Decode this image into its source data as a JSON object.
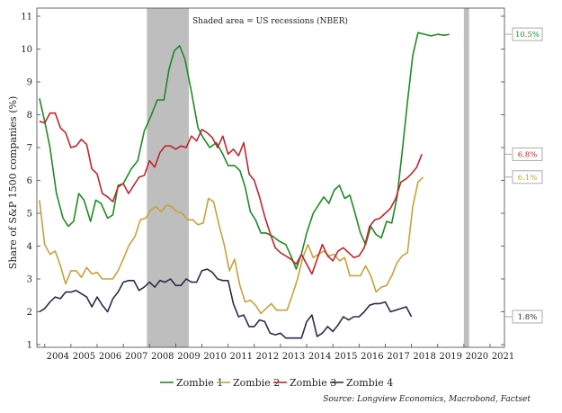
{
  "chart_data": {
    "type": "line",
    "note": "Shaded area = US recessions (NBER)",
    "ylabel": "Share of S&P 1500 companies (%)",
    "source": "Source:  Longview Economics, Macrobond, Factset",
    "ylim": [
      1,
      11
    ],
    "xlim": [
      2003.7,
      2021.55
    ],
    "yticks": [
      "1",
      "2",
      "3",
      "4",
      "5",
      "6",
      "7",
      "8",
      "9",
      "10",
      "11"
    ],
    "xticks": [
      "2004",
      "2005",
      "2006",
      "2007",
      "2008",
      "2009",
      "2010",
      "2011",
      "2012",
      "2013",
      "2014",
      "2015",
      "2016",
      "2017",
      "2018",
      "2019",
      "2020",
      "2021"
    ],
    "recessions": [
      [
        2007.9,
        2009.5
      ],
      [
        2020.0,
        2020.2
      ]
    ],
    "colors": {
      "Zombie 1": "#1f8b24",
      "Zombie 2": "#c9a13a",
      "Zombie 3": "#c0262c",
      "Zombie 4": "#2b2b4a",
      "recession": "#bebebe"
    },
    "end_labels": [
      {
        "text": "10.5%",
        "color": "#1f8b24",
        "y": 10.45
      },
      {
        "text": "6.8%",
        "color": "#c0262c",
        "y": 6.8
      },
      {
        "text": "6.1%",
        "color": "#c9a13a",
        "y": 6.1
      },
      {
        "text": "1.8%",
        "color": "#2b2b4a",
        "y": 1.85
      }
    ],
    "series": [
      {
        "name": "Zombie 1",
        "points": [
          [
            2003.8,
            8.5
          ],
          [
            2004.0,
            7.8
          ],
          [
            2004.2,
            7.0
          ],
          [
            2004.45,
            5.6
          ],
          [
            2004.7,
            4.85
          ],
          [
            2004.9,
            4.6
          ],
          [
            2005.1,
            4.75
          ],
          [
            2005.3,
            5.6
          ],
          [
            2005.5,
            5.4
          ],
          [
            2005.75,
            4.75
          ],
          [
            2005.95,
            5.4
          ],
          [
            2006.15,
            5.3
          ],
          [
            2006.4,
            4.85
          ],
          [
            2006.6,
            4.95
          ],
          [
            2006.8,
            5.85
          ],
          [
            2007.0,
            5.9
          ],
          [
            2007.3,
            6.35
          ],
          [
            2007.55,
            6.6
          ],
          [
            2007.8,
            7.5
          ],
          [
            2008.05,
            7.95
          ],
          [
            2008.3,
            8.45
          ],
          [
            2008.55,
            8.45
          ],
          [
            2008.75,
            9.4
          ],
          [
            2008.95,
            9.95
          ],
          [
            2009.15,
            10.1
          ],
          [
            2009.35,
            9.7
          ],
          [
            2009.6,
            8.7
          ],
          [
            2009.85,
            7.6
          ],
          [
            2010.05,
            7.3
          ],
          [
            2010.3,
            7.0
          ],
          [
            2010.55,
            7.15
          ],
          [
            2010.8,
            6.8
          ],
          [
            2011.0,
            6.45
          ],
          [
            2011.25,
            6.45
          ],
          [
            2011.45,
            6.3
          ],
          [
            2011.65,
            5.8
          ],
          [
            2011.85,
            5.05
          ],
          [
            2012.05,
            4.8
          ],
          [
            2012.25,
            4.4
          ],
          [
            2012.45,
            4.4
          ],
          [
            2012.7,
            4.3
          ],
          [
            2012.95,
            4.15
          ],
          [
            2013.2,
            4.05
          ],
          [
            2013.4,
            3.7
          ],
          [
            2013.6,
            3.3
          ],
          [
            2013.8,
            3.75
          ],
          [
            2014.0,
            4.4
          ],
          [
            2014.25,
            5.0
          ],
          [
            2014.45,
            5.25
          ],
          [
            2014.65,
            5.5
          ],
          [
            2014.85,
            5.3
          ],
          [
            2015.05,
            5.7
          ],
          [
            2015.25,
            5.85
          ],
          [
            2015.45,
            5.45
          ],
          [
            2015.65,
            5.55
          ],
          [
            2015.85,
            5.0
          ],
          [
            2016.05,
            4.4
          ],
          [
            2016.25,
            4.05
          ],
          [
            2016.45,
            4.6
          ],
          [
            2016.65,
            4.35
          ],
          [
            2016.85,
            4.25
          ],
          [
            2017.05,
            4.75
          ],
          [
            2017.25,
            4.7
          ],
          [
            2017.45,
            5.5
          ],
          [
            2017.65,
            6.9
          ],
          [
            2017.85,
            8.4
          ],
          [
            2018.05,
            9.8
          ],
          [
            2018.25,
            10.5
          ],
          [
            2018.5,
            10.45
          ],
          [
            2018.75,
            10.4
          ],
          [
            2019.0,
            10.45
          ],
          [
            2019.25,
            10.42
          ],
          [
            2019.45,
            10.45
          ]
        ]
      },
      {
        "name": "Zombie 2",
        "points": [
          [
            2003.8,
            5.4
          ],
          [
            2004.0,
            4.05
          ],
          [
            2004.2,
            3.75
          ],
          [
            2004.4,
            3.85
          ],
          [
            2004.6,
            3.4
          ],
          [
            2004.8,
            2.85
          ],
          [
            2005.0,
            3.25
          ],
          [
            2005.2,
            3.25
          ],
          [
            2005.4,
            3.05
          ],
          [
            2005.6,
            3.35
          ],
          [
            2005.8,
            3.15
          ],
          [
            2006.0,
            3.2
          ],
          [
            2006.2,
            3.0
          ],
          [
            2006.4,
            3.0
          ],
          [
            2006.6,
            3.0
          ],
          [
            2006.8,
            3.25
          ],
          [
            2007.0,
            3.6
          ],
          [
            2007.2,
            4.0
          ],
          [
            2007.45,
            4.3
          ],
          [
            2007.65,
            4.8
          ],
          [
            2007.85,
            4.85
          ],
          [
            2008.05,
            5.1
          ],
          [
            2008.25,
            5.2
          ],
          [
            2008.45,
            5.05
          ],
          [
            2008.65,
            5.25
          ],
          [
            2008.85,
            5.2
          ],
          [
            2009.05,
            5.05
          ],
          [
            2009.25,
            5.0
          ],
          [
            2009.45,
            4.8
          ],
          [
            2009.65,
            4.8
          ],
          [
            2009.85,
            4.65
          ],
          [
            2010.05,
            4.7
          ],
          [
            2010.25,
            5.45
          ],
          [
            2010.45,
            5.35
          ],
          [
            2010.65,
            4.65
          ],
          [
            2010.85,
            4.05
          ],
          [
            2011.05,
            3.25
          ],
          [
            2011.25,
            3.6
          ],
          [
            2011.45,
            2.8
          ],
          [
            2011.65,
            2.3
          ],
          [
            2011.85,
            2.35
          ],
          [
            2012.05,
            2.2
          ],
          [
            2012.25,
            1.95
          ],
          [
            2012.45,
            2.1
          ],
          [
            2012.65,
            2.25
          ],
          [
            2012.85,
            2.05
          ],
          [
            2013.05,
            2.05
          ],
          [
            2013.25,
            2.05
          ],
          [
            2013.45,
            2.5
          ],
          [
            2013.65,
            3.0
          ],
          [
            2013.85,
            3.65
          ],
          [
            2014.05,
            4.05
          ],
          [
            2014.25,
            3.65
          ],
          [
            2014.45,
            3.75
          ],
          [
            2014.65,
            3.85
          ],
          [
            2014.85,
            3.7
          ],
          [
            2015.05,
            3.75
          ],
          [
            2015.25,
            3.55
          ],
          [
            2015.45,
            3.65
          ],
          [
            2015.65,
            3.1
          ],
          [
            2015.85,
            3.1
          ],
          [
            2016.05,
            3.1
          ],
          [
            2016.25,
            3.4
          ],
          [
            2016.45,
            3.1
          ],
          [
            2016.65,
            2.6
          ],
          [
            2016.85,
            2.75
          ],
          [
            2017.05,
            2.8
          ],
          [
            2017.25,
            3.1
          ],
          [
            2017.45,
            3.5
          ],
          [
            2017.65,
            3.7
          ],
          [
            2017.85,
            3.8
          ],
          [
            2018.05,
            5.2
          ],
          [
            2018.25,
            5.95
          ],
          [
            2018.45,
            6.1
          ]
        ]
      },
      {
        "name": "Zombie 3",
        "points": [
          [
            2003.8,
            7.8
          ],
          [
            2004.0,
            7.75
          ],
          [
            2004.2,
            8.05
          ],
          [
            2004.4,
            8.05
          ],
          [
            2004.6,
            7.6
          ],
          [
            2004.8,
            7.45
          ],
          [
            2005.0,
            7.0
          ],
          [
            2005.2,
            7.05
          ],
          [
            2005.4,
            7.25
          ],
          [
            2005.6,
            7.1
          ],
          [
            2005.8,
            6.35
          ],
          [
            2006.0,
            6.2
          ],
          [
            2006.2,
            5.6
          ],
          [
            2006.4,
            5.5
          ],
          [
            2006.6,
            5.35
          ],
          [
            2006.8,
            5.8
          ],
          [
            2007.0,
            5.9
          ],
          [
            2007.2,
            5.6
          ],
          [
            2007.4,
            5.85
          ],
          [
            2007.6,
            6.1
          ],
          [
            2007.8,
            6.15
          ],
          [
            2008.0,
            6.6
          ],
          [
            2008.2,
            6.4
          ],
          [
            2008.4,
            6.85
          ],
          [
            2008.6,
            7.05
          ],
          [
            2008.8,
            7.05
          ],
          [
            2009.0,
            6.95
          ],
          [
            2009.2,
            7.05
          ],
          [
            2009.4,
            7.0
          ],
          [
            2009.6,
            7.35
          ],
          [
            2009.8,
            7.2
          ],
          [
            2010.0,
            7.55
          ],
          [
            2010.2,
            7.45
          ],
          [
            2010.4,
            7.3
          ],
          [
            2010.6,
            7.0
          ],
          [
            2010.8,
            7.35
          ],
          [
            2011.0,
            6.8
          ],
          [
            2011.2,
            6.95
          ],
          [
            2011.4,
            6.75
          ],
          [
            2011.6,
            7.15
          ],
          [
            2011.8,
            6.2
          ],
          [
            2012.0,
            6.0
          ],
          [
            2012.2,
            5.5
          ],
          [
            2012.4,
            4.9
          ],
          [
            2012.6,
            4.4
          ],
          [
            2012.8,
            3.95
          ],
          [
            2013.0,
            3.8
          ],
          [
            2013.2,
            3.7
          ],
          [
            2013.4,
            3.6
          ],
          [
            2013.6,
            3.45
          ],
          [
            2013.8,
            3.75
          ],
          [
            2014.0,
            3.45
          ],
          [
            2014.2,
            3.15
          ],
          [
            2014.4,
            3.6
          ],
          [
            2014.6,
            4.05
          ],
          [
            2014.8,
            3.7
          ],
          [
            2015.0,
            3.55
          ],
          [
            2015.2,
            3.85
          ],
          [
            2015.4,
            3.95
          ],
          [
            2015.6,
            3.8
          ],
          [
            2015.8,
            3.65
          ],
          [
            2016.0,
            3.7
          ],
          [
            2016.2,
            3.95
          ],
          [
            2016.4,
            4.6
          ],
          [
            2016.6,
            4.8
          ],
          [
            2016.8,
            4.85
          ],
          [
            2017.0,
            5.0
          ],
          [
            2017.2,
            5.15
          ],
          [
            2017.4,
            5.45
          ],
          [
            2017.6,
            5.95
          ],
          [
            2017.8,
            6.05
          ],
          [
            2018.0,
            6.2
          ],
          [
            2018.2,
            6.4
          ],
          [
            2018.4,
            6.8
          ]
        ]
      },
      {
        "name": "Zombie 4",
        "points": [
          [
            2003.8,
            2.0
          ],
          [
            2004.0,
            2.1
          ],
          [
            2004.2,
            2.3
          ],
          [
            2004.4,
            2.45
          ],
          [
            2004.6,
            2.4
          ],
          [
            2004.8,
            2.6
          ],
          [
            2005.0,
            2.6
          ],
          [
            2005.2,
            2.65
          ],
          [
            2005.4,
            2.55
          ],
          [
            2005.6,
            2.45
          ],
          [
            2005.8,
            2.15
          ],
          [
            2006.0,
            2.45
          ],
          [
            2006.2,
            2.2
          ],
          [
            2006.4,
            2.0
          ],
          [
            2006.6,
            2.4
          ],
          [
            2006.8,
            2.6
          ],
          [
            2007.0,
            2.9
          ],
          [
            2007.2,
            2.95
          ],
          [
            2007.4,
            2.95
          ],
          [
            2007.6,
            2.65
          ],
          [
            2007.8,
            2.75
          ],
          [
            2008.0,
            2.9
          ],
          [
            2008.2,
            2.75
          ],
          [
            2008.4,
            2.95
          ],
          [
            2008.6,
            2.9
          ],
          [
            2008.8,
            3.0
          ],
          [
            2009.0,
            2.8
          ],
          [
            2009.2,
            2.8
          ],
          [
            2009.4,
            3.0
          ],
          [
            2009.6,
            2.9
          ],
          [
            2009.8,
            2.9
          ],
          [
            2010.0,
            3.25
          ],
          [
            2010.2,
            3.3
          ],
          [
            2010.4,
            3.2
          ],
          [
            2010.6,
            3.0
          ],
          [
            2010.8,
            2.95
          ],
          [
            2011.0,
            2.95
          ],
          [
            2011.2,
            2.25
          ],
          [
            2011.4,
            1.85
          ],
          [
            2011.6,
            1.9
          ],
          [
            2011.8,
            1.55
          ],
          [
            2012.0,
            1.55
          ],
          [
            2012.2,
            1.75
          ],
          [
            2012.4,
            1.7
          ],
          [
            2012.6,
            1.35
          ],
          [
            2012.8,
            1.3
          ],
          [
            2013.0,
            1.35
          ],
          [
            2013.2,
            1.2
          ],
          [
            2013.4,
            1.2
          ],
          [
            2013.6,
            1.2
          ],
          [
            2013.8,
            1.2
          ],
          [
            2014.0,
            1.7
          ],
          [
            2014.2,
            1.9
          ],
          [
            2014.4,
            1.25
          ],
          [
            2014.6,
            1.35
          ],
          [
            2014.8,
            1.55
          ],
          [
            2015.0,
            1.4
          ],
          [
            2015.2,
            1.6
          ],
          [
            2015.4,
            1.85
          ],
          [
            2015.6,
            1.75
          ],
          [
            2015.8,
            1.85
          ],
          [
            2016.0,
            1.85
          ],
          [
            2016.2,
            2.0
          ],
          [
            2016.4,
            2.2
          ],
          [
            2016.6,
            2.25
          ],
          [
            2016.8,
            2.25
          ],
          [
            2017.0,
            2.3
          ],
          [
            2017.2,
            2.0
          ],
          [
            2017.4,
            2.05
          ],
          [
            2017.6,
            2.1
          ],
          [
            2017.8,
            2.15
          ],
          [
            2018.0,
            1.85
          ]
        ]
      }
    ]
  }
}
